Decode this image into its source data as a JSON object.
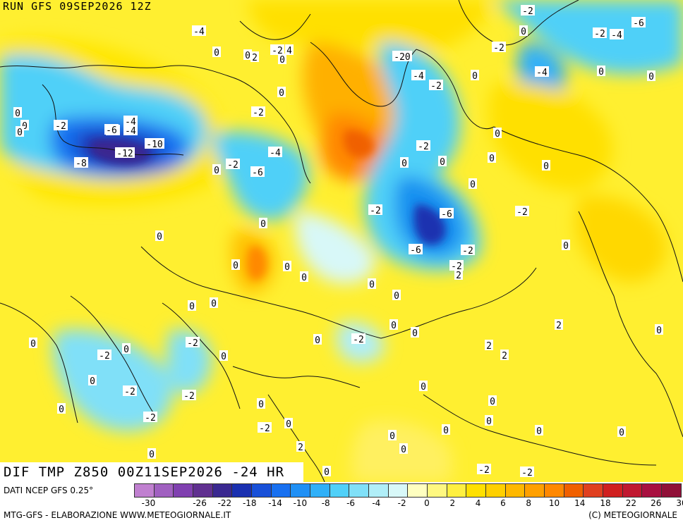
{
  "header": {
    "run_label": "RUN GFS 09SEP2026 12Z"
  },
  "footer": {
    "title": "DIF TMP Z850 00Z11SEP2026 -24 HR",
    "source": "DATI NCEP GFS 0.25°",
    "credit_left": "MTG-GFS - ELABORAZIONE WWW.METEOGIORNALE.IT",
    "credit_right": "(C) METEOGIORNALE"
  },
  "scale": {
    "colors": [
      "#c080d0",
      "#a060c0",
      "#8040b0",
      "#603090",
      "#3a2890",
      "#1a30b0",
      "#1850d8",
      "#1870f0",
      "#2090f5",
      "#30b0f8",
      "#50d0f8",
      "#80e0f8",
      "#b0eef8",
      "#d8f8f8",
      "#ffffc0",
      "#fff880",
      "#fff040",
      "#ffe000",
      "#ffd000",
      "#ffb800",
      "#ffa000",
      "#ff8800",
      "#f06000",
      "#e04020",
      "#d02020",
      "#c01830",
      "#a81040",
      "#901038"
    ],
    "tick_labels": [
      "-30",
      "-26",
      "-22",
      "-18",
      "-14",
      "-10",
      "-8",
      "-6",
      "-4",
      "-2",
      "0",
      "2",
      "4",
      "6",
      "8",
      "10",
      "14",
      "18",
      "22",
      "26",
      "30"
    ]
  },
  "map_labels": [
    "-4",
    "0",
    "2",
    "0",
    "-2",
    "4",
    "0",
    "-20",
    "-4",
    "0",
    "-2",
    "-4",
    "-6",
    "-2",
    "-4",
    "0",
    "-2",
    "0",
    "-2",
    "0",
    "-4",
    "0",
    "0",
    "-2",
    "0",
    "0",
    "-6",
    "-8",
    "-4",
    "0",
    "-2",
    "-12",
    "-10",
    "-8",
    "0",
    "0",
    "-2",
    "-6",
    "0",
    "0",
    "-2",
    "-4",
    "-6",
    "0",
    "-6",
    "0",
    "-2",
    "-2",
    "-2",
    "0",
    "0",
    "0",
    "0",
    "0",
    "0",
    "0",
    "0",
    "0",
    "2",
    "0",
    "-2",
    "0",
    "0",
    "-2",
    "-2",
    "2",
    "2",
    "0",
    "2",
    "0",
    "-2",
    "0",
    "0",
    "-2",
    "0",
    "0",
    "-2",
    "-2",
    "0",
    "0",
    "0",
    "0",
    "0",
    "-2",
    "0",
    "0",
    "0",
    "0",
    "0",
    "-2",
    "0",
    "-2",
    "0",
    "0",
    "2"
  ]
}
